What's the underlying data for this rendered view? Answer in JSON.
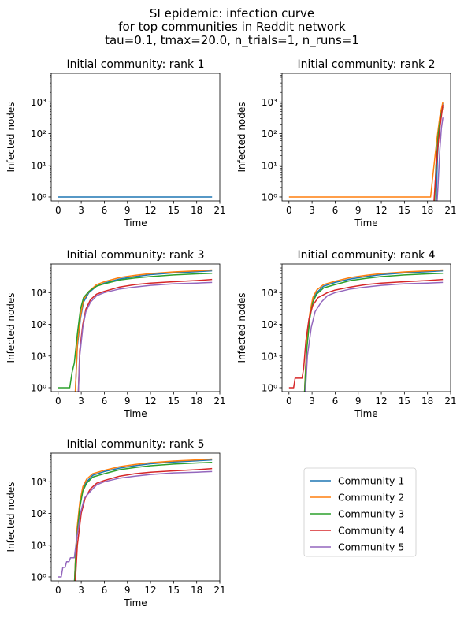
{
  "figure": {
    "title_lines": [
      "SI epidemic: infection curve",
      "for top communities in Reddit network",
      "tau=0.1, tmax=20.0, n_trials=1, n_runs=1"
    ]
  },
  "colors": {
    "Community 1": "#1f77b4",
    "Community 2": "#ff7f0e",
    "Community 3": "#2ca02c",
    "Community 4": "#d62728",
    "Community 5": "#9467bd"
  },
  "legend": {
    "placement": "empty-sixth-panel",
    "entries": [
      "Community 1",
      "Community 2",
      "Community 3",
      "Community 4",
      "Community 5"
    ]
  },
  "chart_data": [
    {
      "type": "line",
      "title": "Initial community: rank 1",
      "xlabel": "Time",
      "ylabel": "Infected nodes",
      "yscale": "log",
      "xlim": [
        -0.9,
        21
      ],
      "ylim": [
        0.75,
        8000
      ],
      "xticks": [
        0,
        3,
        6,
        9,
        12,
        15,
        18,
        21
      ],
      "yticks": [
        1,
        10,
        100,
        1000
      ],
      "ytick_labels": [
        "10⁰",
        "10¹",
        "10²",
        "10³"
      ],
      "series": [
        {
          "name": "Community 1",
          "x": [
            0,
            20
          ],
          "y": [
            1,
            1
          ]
        }
      ]
    },
    {
      "type": "line",
      "title": "Initial community: rank 2",
      "xlabel": "Time",
      "ylabel": "Infected nodes",
      "yscale": "log",
      "xlim": [
        -0.9,
        21
      ],
      "ylim": [
        0.75,
        8000
      ],
      "xticks": [
        0,
        3,
        6,
        9,
        12,
        15,
        18,
        21
      ],
      "yticks": [
        1,
        10,
        100,
        1000
      ],
      "ytick_labels": [
        "10⁰",
        "10¹",
        "10²",
        "10³"
      ],
      "series": [
        {
          "name": "Community 1",
          "x": [
            19.1,
            19.3,
            19.6,
            20
          ],
          "y": [
            0.5,
            20,
            300,
            900
          ]
        },
        {
          "name": "Community 2",
          "x": [
            0,
            18,
            18.4,
            18.8,
            19.2,
            19.6,
            20
          ],
          "y": [
            1,
            1,
            1,
            8,
            60,
            350,
            1000
          ]
        },
        {
          "name": "Community 3",
          "x": [
            18.9,
            19.1,
            19.4,
            19.7,
            20
          ],
          "y": [
            0.5,
            10,
            100,
            350,
            700
          ]
        },
        {
          "name": "Community 4",
          "x": [
            18.8,
            19.0,
            19.3,
            19.6,
            20
          ],
          "y": [
            0.5,
            3,
            30,
            150,
            800
          ]
        },
        {
          "name": "Community 5",
          "x": [
            19.2,
            19.35,
            19.6,
            19.8,
            20
          ],
          "y": [
            0.5,
            2,
            30,
            150,
            320
          ]
        }
      ]
    },
    {
      "type": "line",
      "title": "Initial community: rank 3",
      "xlabel": "Time",
      "ylabel": "Infected nodes",
      "yscale": "log",
      "xlim": [
        -0.9,
        21
      ],
      "ylim": [
        0.75,
        8000
      ],
      "xticks": [
        0,
        3,
        6,
        9,
        12,
        15,
        18,
        21
      ],
      "yticks": [
        1,
        10,
        100,
        1000
      ],
      "ytick_labels": [
        "10⁰",
        "10¹",
        "10²",
        "10³"
      ],
      "series": [
        {
          "name": "Community 1",
          "x": [
            2.2,
            2.5,
            2.9,
            3.3,
            4,
            5,
            6,
            8,
            10,
            12,
            15,
            18,
            20
          ],
          "y": [
            0.5,
            20,
            150,
            500,
            1000,
            1600,
            2000,
            2700,
            3200,
            3700,
            4200,
            4600,
            4900
          ]
        },
        {
          "name": "Community 2",
          "x": [
            2.2,
            2.5,
            2.9,
            3.3,
            4,
            5,
            6,
            8,
            10,
            12,
            15,
            18,
            20
          ],
          "y": [
            0.5,
            25,
            180,
            600,
            1100,
            1800,
            2200,
            3000,
            3500,
            4000,
            4500,
            4900,
            5200
          ]
        },
        {
          "name": "Community 3",
          "x": [
            0,
            1.5,
            1.8,
            2.1,
            2.5,
            2.9,
            3.3,
            4,
            5,
            6,
            8,
            10,
            12,
            15,
            18,
            20
          ],
          "y": [
            1,
            1,
            3,
            6,
            50,
            300,
            700,
            1100,
            1600,
            1900,
            2500,
            2900,
            3200,
            3600,
            3900,
            4100
          ]
        },
        {
          "name": "Community 4",
          "x": [
            2.6,
            2.8,
            3.2,
            3.6,
            4.2,
            5,
            6,
            8,
            10,
            12,
            15,
            18,
            20
          ],
          "y": [
            0.5,
            15,
            100,
            300,
            600,
            900,
            1100,
            1500,
            1800,
            2000,
            2200,
            2400,
            2600
          ]
        },
        {
          "name": "Community 5",
          "x": [
            2.6,
            2.8,
            3.2,
            3.6,
            4.2,
            5,
            6,
            8,
            10,
            12,
            15,
            18,
            20
          ],
          "y": [
            0.5,
            10,
            80,
            250,
            500,
            800,
            1000,
            1300,
            1500,
            1700,
            1900,
            2000,
            2100
          ]
        }
      ]
    },
    {
      "type": "line",
      "title": "Initial community: rank 4",
      "xlabel": "Time",
      "ylabel": "Infected nodes",
      "yscale": "log",
      "xlim": [
        -0.9,
        21
      ],
      "ylim": [
        0.75,
        8000
      ],
      "xticks": [
        0,
        3,
        6,
        9,
        12,
        15,
        18,
        21
      ],
      "yticks": [
        1,
        10,
        100,
        1000
      ],
      "ytick_labels": [
        "10⁰",
        "10¹",
        "10²",
        "10³"
      ],
      "series": [
        {
          "name": "Community 1",
          "x": [
            2.0,
            2.3,
            2.7,
            3.1,
            3.6,
            4.5,
            6,
            8,
            10,
            12,
            15,
            18,
            20
          ],
          "y": [
            0.5,
            20,
            180,
            600,
            1000,
            1600,
            2100,
            2700,
            3200,
            3700,
            4200,
            4600,
            4900
          ]
        },
        {
          "name": "Community 2",
          "x": [
            2.0,
            2.3,
            2.7,
            3.1,
            3.6,
            4.5,
            6,
            8,
            10,
            12,
            15,
            18,
            20
          ],
          "y": [
            0.5,
            25,
            220,
            700,
            1200,
            1800,
            2300,
            3000,
            3500,
            4000,
            4500,
            4900,
            5200
          ]
        },
        {
          "name": "Community 3",
          "x": [
            2.0,
            2.3,
            2.7,
            3.1,
            3.6,
            4.5,
            6,
            8,
            10,
            12,
            15,
            18,
            20
          ],
          "y": [
            0.5,
            15,
            150,
            500,
            900,
            1400,
            1800,
            2400,
            2800,
            3200,
            3600,
            3900,
            4100
          ]
        },
        {
          "name": "Community 4",
          "x": [
            0,
            0.6,
            0.8,
            1.7,
            1.9,
            2.2,
            2.6,
            3.1,
            3.8,
            5,
            6,
            8,
            10,
            12,
            15,
            18,
            20
          ],
          "y": [
            1,
            1,
            2,
            2,
            4,
            30,
            150,
            400,
            700,
            1000,
            1200,
            1500,
            1800,
            2000,
            2200,
            2400,
            2600
          ]
        },
        {
          "name": "Community 5",
          "x": [
            2.1,
            2.4,
            2.9,
            3.4,
            4.2,
            5,
            6,
            8,
            10,
            12,
            15,
            18,
            20
          ],
          "y": [
            0.5,
            10,
            80,
            250,
            500,
            800,
            1000,
            1300,
            1500,
            1700,
            1900,
            2000,
            2100
          ]
        }
      ]
    },
    {
      "type": "line",
      "title": "Initial community: rank 5",
      "xlabel": "Time",
      "ylabel": "Infected nodes",
      "yscale": "log",
      "xlim": [
        -0.9,
        21
      ],
      "ylim": [
        0.75,
        8000
      ],
      "xticks": [
        0,
        3,
        6,
        9,
        12,
        15,
        18,
        21
      ],
      "yticks": [
        1,
        10,
        100,
        1000
      ],
      "ytick_labels": [
        "10⁰",
        "10¹",
        "10²",
        "10³"
      ],
      "series": [
        {
          "name": "Community 1",
          "x": [
            2.1,
            2.4,
            2.8,
            3.2,
            3.7,
            4.5,
            6,
            8,
            10,
            12,
            15,
            18,
            20
          ],
          "y": [
            0.5,
            20,
            180,
            600,
            1000,
            1600,
            2100,
            2700,
            3200,
            3700,
            4200,
            4600,
            4900
          ]
        },
        {
          "name": "Community 2",
          "x": [
            2.1,
            2.4,
            2.8,
            3.2,
            3.7,
            4.5,
            6,
            8,
            10,
            12,
            15,
            18,
            20
          ],
          "y": [
            0.5,
            25,
            220,
            700,
            1200,
            1800,
            2300,
            3000,
            3500,
            4000,
            4500,
            4900,
            5200
          ]
        },
        {
          "name": "Community 3",
          "x": [
            2.1,
            2.4,
            2.8,
            3.2,
            3.7,
            4.5,
            6,
            8,
            10,
            12,
            15,
            18,
            20
          ],
          "y": [
            0.5,
            15,
            150,
            500,
            900,
            1400,
            1800,
            2400,
            2800,
            3200,
            3600,
            3900,
            4100
          ]
        },
        {
          "name": "Community 4",
          "x": [
            2.2,
            2.5,
            3.0,
            3.5,
            4.2,
            5,
            6,
            8,
            10,
            12,
            15,
            18,
            20
          ],
          "y": [
            0.5,
            10,
            100,
            300,
            600,
            900,
            1100,
            1500,
            1800,
            2000,
            2200,
            2400,
            2600
          ]
        },
        {
          "name": "Community 5",
          "x": [
            0,
            0.4,
            0.6,
            0.9,
            1.1,
            1.4,
            1.6,
            2.1,
            2.4,
            2.9,
            3.4,
            4.2,
            5,
            6,
            8,
            10,
            12,
            15,
            18,
            20
          ],
          "y": [
            1,
            1,
            2,
            2,
            3,
            3,
            4,
            4,
            15,
            100,
            300,
            500,
            800,
            1000,
            1300,
            1500,
            1700,
            1900,
            2000,
            2100
          ]
        }
      ]
    }
  ]
}
